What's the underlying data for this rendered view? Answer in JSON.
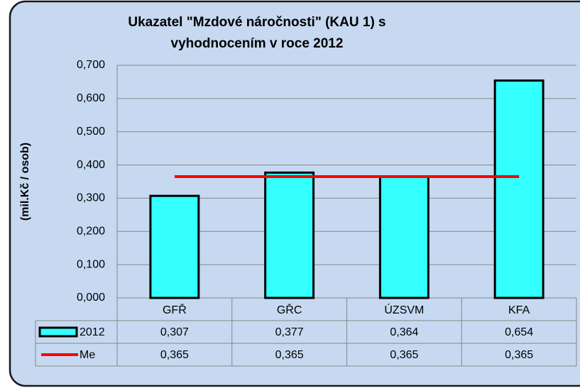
{
  "chart_data": {
    "type": "bar",
    "title": [
      "Ukazatel \"Mzdové náročnosti\" (KAU 1) s",
      "vyhodnocením v roce 2012"
    ],
    "y_label": "(mil.Kč / osob)",
    "categories": [
      "GFŘ",
      "GŘC",
      "ÚZSVM",
      "KFA"
    ],
    "series": [
      {
        "name": "2012",
        "type": "bar",
        "color": "#33ffff",
        "values": [
          0.307,
          0.377,
          0.364,
          0.654
        ],
        "value_labels": [
          "0,307",
          "0,377",
          "0,364",
          "0,654"
        ]
      },
      {
        "name": "Me",
        "type": "line",
        "color": "#ff0000",
        "values": [
          0.365,
          0.365,
          0.365,
          0.365
        ],
        "value_labels": [
          "0,365",
          "0,365",
          "0,365",
          "0,365"
        ]
      }
    ],
    "ylim": [
      0,
      0.7
    ],
    "yticks": [
      {
        "value": 0,
        "label": "0,000"
      },
      {
        "value": 0.1,
        "label": "0,100"
      },
      {
        "value": 0.2,
        "label": "0,200"
      },
      {
        "value": 0.3,
        "label": "0,300"
      },
      {
        "value": 0.4,
        "label": "0,400"
      },
      {
        "value": 0.5,
        "label": "0,500"
      },
      {
        "value": 0.6,
        "label": "0,600"
      },
      {
        "value": 0.7,
        "label": "0,700"
      }
    ],
    "grid": true,
    "data_table": true
  }
}
